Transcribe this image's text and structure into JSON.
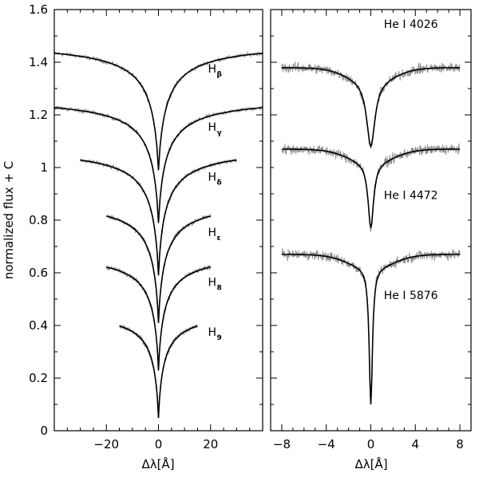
{
  "chart_data": [
    {
      "type": "line",
      "panel": "left",
      "xlabel": "Δλ[Å]",
      "ylabel": "normalized flux + C",
      "xlim": [
        -40,
        40
      ],
      "ylim": [
        0,
        1.6
      ],
      "xticks": [
        -20,
        0,
        20
      ],
      "yticks": [
        0,
        0.2,
        0.4,
        0.6,
        0.8,
        1,
        1.2,
        1.4,
        1.6
      ],
      "ytick_labels": [
        "0",
        "0.2",
        "0.4",
        "0.6",
        "0.8",
        "1",
        "1.2",
        "1.4",
        "1.6"
      ],
      "series": [
        {
          "name": "Hβ",
          "label": "H",
          "sub": "β",
          "label_x": 19,
          "label_y": 1.36,
          "continuum": 1.48,
          "depth": 0.5,
          "width": 3.2,
          "xrange": [
            -40,
            40
          ]
        },
        {
          "name": "Hγ",
          "label": "H",
          "sub": "γ",
          "label_x": 19,
          "label_y": 1.14,
          "continuum": 1.27,
          "depth": 0.49,
          "width": 3.0,
          "xrange": [
            -40,
            40
          ]
        },
        {
          "name": "Hδ",
          "label": "H",
          "sub": "δ",
          "label_x": 19,
          "label_y": 0.95,
          "continuum": 1.08,
          "depth": 0.5,
          "width": 2.8,
          "xrange": [
            -30,
            30
          ]
        },
        {
          "name": "Hε",
          "label": "H",
          "sub": "ε",
          "label_x": 19,
          "label_y": 0.74,
          "continuum": 0.88,
          "depth": 0.48,
          "width": 2.6,
          "xrange": [
            -20,
            20
          ]
        },
        {
          "name": "H8",
          "label": "H",
          "sub": "8",
          "label_x": 19,
          "label_y": 0.55,
          "continuum": 0.68,
          "depth": 0.46,
          "width": 2.4,
          "xrange": [
            -20,
            20
          ]
        },
        {
          "name": "H9",
          "label": "H",
          "sub": "9",
          "label_x": 19,
          "label_y": 0.36,
          "continuum": 0.46,
          "depth": 0.42,
          "width": 2.2,
          "xrange": [
            -15,
            15
          ]
        }
      ]
    },
    {
      "type": "line",
      "panel": "right",
      "xlabel": "Δλ[Å]",
      "xlim": [
        -9,
        9
      ],
      "ylim": [
        0,
        1.6
      ],
      "xticks": [
        -8,
        -4,
        0,
        4,
        8
      ],
      "series": [
        {
          "name": "He I 4026",
          "label": "He I 4026",
          "label_x": 3.6,
          "label_y": 1.53,
          "continuum": 1.38,
          "depth": 0.25,
          "width": 0.45
        },
        {
          "name": "He I 4472",
          "label": "He I 4472",
          "label_x": 3.6,
          "label_y": 0.88,
          "continuum": 1.07,
          "depth": 0.25,
          "width": 0.3
        },
        {
          "name": "He I 5876",
          "label": "He I 5876",
          "label_x": 3.6,
          "label_y": 0.5,
          "continuum": 0.67,
          "depth": 0.52,
          "width": 0.18
        }
      ]
    }
  ]
}
